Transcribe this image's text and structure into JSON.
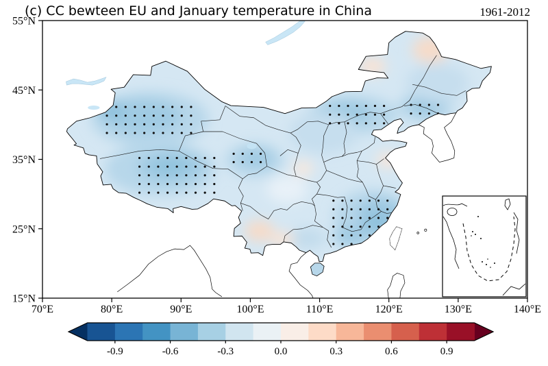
{
  "figure": {
    "title": "(c) CC bewteen EU and January temperature in China",
    "period": "1961-2012"
  },
  "axes": {
    "x_ticks": [
      "70°E",
      "80°E",
      "90°E",
      "100°E",
      "110°E",
      "120°E",
      "130°E",
      "140°E"
    ],
    "y_ticks": [
      "55°N",
      "45°N",
      "35°N",
      "25°N",
      "15°N"
    ],
    "x_tick_values": [
      70,
      80,
      90,
      100,
      110,
      120,
      130,
      140
    ],
    "y_tick_values": [
      55,
      45,
      35,
      25,
      15
    ]
  },
  "colorbar": {
    "vmin": -1.05,
    "vmax": 1.05,
    "tick_labels": [
      "-0.9",
      "-0.6",
      "-0.3",
      "0.0",
      "0.3",
      "0.6",
      "0.9"
    ],
    "tick_values": [
      -0.9,
      -0.6,
      -0.3,
      0.0,
      0.3,
      0.6,
      0.9
    ],
    "segment_colors": [
      "#185493",
      "#2c75b4",
      "#4393c3",
      "#78b4d5",
      "#a7d0e4",
      "#d1e5f0",
      "#eaf1f5",
      "#f9eee7",
      "#fddbc7",
      "#f7b799",
      "#ea8e70",
      "#d6604d",
      "#be3036",
      "#991027"
    ],
    "under_arrow_color": "#053061",
    "over_arrow_color": "#67001f"
  },
  "chart_data": {
    "type": "heatmap",
    "subtype": "filled-contour correlation map with stippling",
    "title": "(c) CC bewteen EU and January temperature in China",
    "period_label": "1961-2012",
    "region": "China",
    "lon_range": [
      70,
      140
    ],
    "lat_range": [
      15,
      55
    ],
    "x_tick_values": [
      70,
      80,
      90,
      100,
      110,
      120,
      130,
      140
    ],
    "y_tick_values": [
      55,
      45,
      35,
      25,
      15
    ],
    "colorbar_levels": [
      -1.05,
      -0.9,
      -0.75,
      -0.6,
      -0.45,
      -0.3,
      -0.15,
      0,
      0.15,
      0.3,
      0.45,
      0.6,
      0.75,
      0.9,
      1.05
    ],
    "field_summary": [
      {
        "area": "most of China",
        "cc_approx": -0.2
      },
      {
        "area": "western Xinjiang (stippled)",
        "cc_approx": -0.35
      },
      {
        "area": "Tibetan Plateau (stippled)",
        "cc_approx": -0.3
      },
      {
        "area": "central China near 100E 35N (stippled)",
        "cc_approx": -0.3
      },
      {
        "area": "Inner Mongolia / north China near 114E 41N (stippled)",
        "cc_approx": -0.35
      },
      {
        "area": "Northeast China near 125E 42N (stippled)",
        "cc_approx": -0.35
      },
      {
        "area": "southeast coastal China (stippled)",
        "cc_approx": -0.4
      },
      {
        "area": "far Northeast around 126E 51N",
        "cc_approx": 0.1
      },
      {
        "area": "Yunnan around 101E 25N",
        "cc_approx": 0.1
      },
      {
        "area": "Sichuan Basin",
        "cc_approx": -0.05
      }
    ],
    "stipple_regions": [
      {
        "lon": [
          79.3,
          92.0
        ],
        "lat": [
          38.8,
          42.6
        ],
        "dlon": 1.35,
        "dlat": 1.25
      },
      {
        "lon": [
          84.0,
          95.0
        ],
        "lat": [
          30.2,
          36.4
        ],
        "dlon": 1.35,
        "dlat": 1.25
      },
      {
        "lon": [
          97.6,
          102.4
        ],
        "lat": [
          34.6,
          36.4
        ],
        "dlon": 1.3,
        "dlat": 1.2
      },
      {
        "lon": [
          111.5,
          119.4
        ],
        "lat": [
          40.2,
          42.8
        ],
        "dlon": 1.3,
        "dlat": 1.25
      },
      {
        "lon": [
          123.2,
          127.4
        ],
        "lat": [
          41.6,
          43.2
        ],
        "dlon": 1.3,
        "dlat": 1.25
      },
      {
        "lon": [
          112.0,
          121.0
        ],
        "lat": [
          22.8,
          29.6
        ],
        "dlon": 1.3,
        "dlat": 1.25
      }
    ]
  }
}
